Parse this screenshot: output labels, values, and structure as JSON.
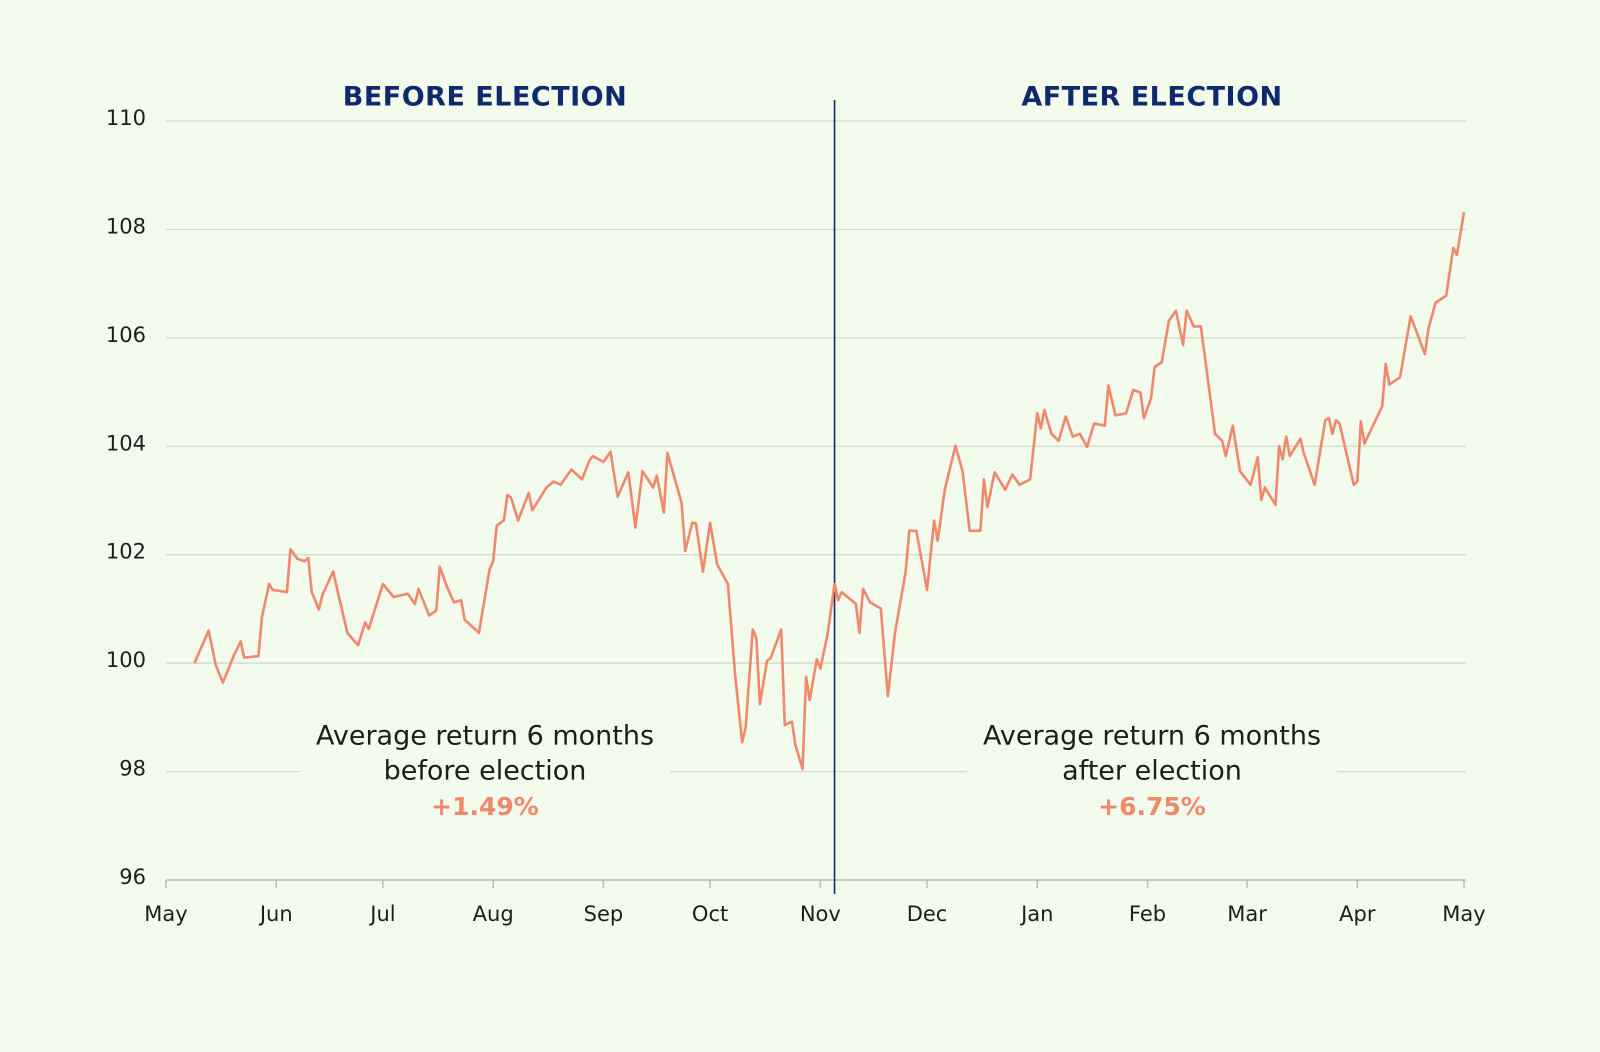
{
  "chart_data": {
    "type": "line",
    "headings": [
      "BEFORE ELECTION",
      "AFTER ELECTION"
    ],
    "heading_color": "#0f2a6c",
    "divider_x": 188,
    "divider_color": "#0f2a6c",
    "annotations": [
      {
        "lines": [
          "Average return 6 months",
          "before election"
        ],
        "highlight": "+1.49%"
      },
      {
        "lines": [
          "Average return 6 months",
          "after election"
        ],
        "highlight": "+6.75%"
      }
    ],
    "highlight_color": "#f0896b",
    "xlim": [
      0,
      365
    ],
    "xticks": [
      {
        "value": 0,
        "label": "May"
      },
      {
        "value": 31,
        "label": "Jun"
      },
      {
        "value": 61,
        "label": "Jul"
      },
      {
        "value": 92,
        "label": "Aug"
      },
      {
        "value": 123,
        "label": "Sep"
      },
      {
        "value": 153,
        "label": "Oct"
      },
      {
        "value": 184,
        "label": "Nov"
      },
      {
        "value": 214,
        "label": "Dec"
      },
      {
        "value": 245,
        "label": "Jan"
      },
      {
        "value": 276,
        "label": "Feb"
      },
      {
        "value": 304,
        "label": "Mar"
      },
      {
        "value": 335,
        "label": "Apr"
      },
      {
        "value": 365,
        "label": "May"
      }
    ],
    "ylim": [
      96,
      110
    ],
    "yticks": [
      96,
      98,
      100,
      102,
      104,
      106,
      108,
      110
    ],
    "grid": true,
    "x": [
      8,
      12,
      14,
      16,
      19,
      21,
      22,
      26,
      27,
      29,
      30,
      34,
      35,
      37,
      39,
      40,
      41,
      43,
      44,
      47,
      49,
      51,
      54,
      56,
      57,
      61,
      64,
      68,
      70,
      71,
      74,
      76,
      77,
      79,
      81,
      83,
      84,
      88,
      91,
      92,
      93,
      95,
      96,
      97,
      99,
      102,
      103,
      107,
      109,
      111,
      113,
      114,
      117,
      119,
      120,
      123,
      125,
      127,
      130,
      132,
      134,
      137,
      138,
      140,
      141,
      145,
      146,
      148,
      149,
      151,
      153,
      155,
      158,
      160,
      162,
      163,
      165,
      166,
      167,
      169,
      170,
      173,
      174,
      176,
      177,
      179,
      180,
      181,
      183,
      184,
      186,
      188,
      189,
      190,
      194,
      195,
      196,
      198,
      201,
      203,
      205,
      208,
      209,
      211,
      214,
      216,
      217,
      219,
      222,
      224,
      226,
      229,
      230,
      231,
      233,
      236,
      238,
      240,
      243,
      245,
      246,
      247,
      249,
      251,
      253,
      255,
      257,
      259,
      261,
      264,
      265,
      267,
      270,
      272,
      274,
      275,
      277,
      278,
      280,
      282,
      284,
      286,
      287,
      289,
      291,
      295,
      297,
      298,
      300,
      302,
      305,
      307,
      308,
      309,
      312,
      313,
      314,
      315,
      316,
      319,
      320,
      323,
      326,
      327,
      328,
      329,
      330,
      334,
      335,
      336,
      337,
      342,
      343,
      344,
      347,
      350,
      354,
      355,
      357,
      360,
      362,
      363,
      365
    ],
    "series": [
      {
        "color": "#f0896b",
        "values": [
          100.0,
          100.6,
          99.96,
          99.64,
          100.13,
          100.4,
          100.1,
          100.13,
          100.86,
          101.46,
          101.35,
          101.31,
          102.1,
          101.92,
          101.88,
          101.94,
          101.31,
          100.99,
          101.26,
          101.69,
          101.12,
          100.56,
          100.33,
          100.75,
          100.63,
          101.46,
          101.22,
          101.28,
          101.09,
          101.37,
          100.88,
          100.97,
          101.78,
          101.41,
          101.12,
          101.16,
          100.8,
          100.56,
          101.73,
          101.88,
          102.54,
          102.63,
          103.1,
          103.06,
          102.63,
          103.14,
          102.82,
          103.24,
          103.35,
          103.29,
          103.48,
          103.57,
          103.39,
          103.73,
          103.82,
          103.71,
          103.9,
          103.07,
          103.52,
          102.5,
          103.54,
          103.24,
          103.46,
          102.78,
          103.88,
          102.95,
          102.07,
          102.59,
          102.58,
          101.69,
          102.59,
          101.82,
          101.46,
          99.81,
          98.54,
          98.81,
          100.62,
          100.47,
          99.24,
          100.04,
          100.09,
          100.62,
          98.86,
          98.92,
          98.49,
          98.05,
          99.75,
          99.32,
          100.07,
          99.9,
          100.52,
          101.46,
          101.16,
          101.31,
          101.09,
          100.56,
          101.37,
          101.12,
          101.01,
          99.39,
          100.56,
          101.69,
          102.44,
          102.44,
          101.35,
          102.63,
          102.26,
          103.2,
          104.01,
          103.54,
          102.44,
          102.44,
          103.39,
          102.88,
          103.52,
          103.2,
          103.48,
          103.29,
          103.39,
          104.61,
          104.33,
          104.67,
          104.23,
          104.1,
          104.55,
          104.18,
          104.23,
          103.99,
          104.42,
          104.38,
          105.12,
          104.57,
          104.61,
          105.04,
          104.99,
          104.52,
          104.89,
          105.46,
          105.55,
          106.31,
          106.5,
          105.87,
          106.5,
          106.21,
          106.21,
          104.23,
          104.1,
          103.82,
          104.38,
          103.54,
          103.29,
          103.8,
          103.01,
          103.24,
          102.92,
          104.0,
          103.76,
          104.18,
          103.82,
          104.14,
          103.86,
          103.29,
          104.48,
          104.52,
          104.23,
          104.48,
          104.42,
          103.29,
          103.35,
          104.46,
          104.05,
          104.74,
          105.52,
          105.14,
          105.27,
          106.4,
          105.7,
          106.17,
          106.65,
          106.78,
          107.66,
          107.53,
          108.32
        ]
      }
    ]
  }
}
